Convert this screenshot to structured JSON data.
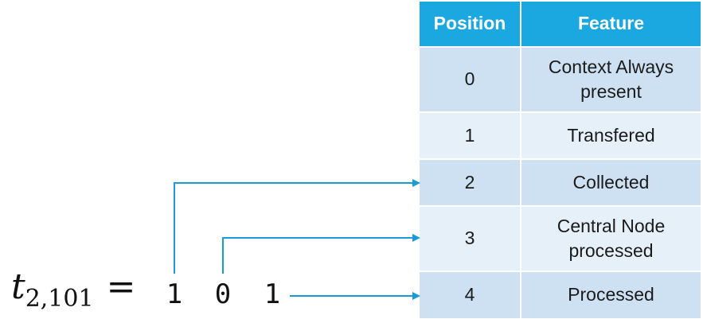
{
  "table": {
    "headers": {
      "position": "Position",
      "feature": "Feature"
    },
    "rows": [
      {
        "position": "0",
        "feature": "Context Always present"
      },
      {
        "position": "1",
        "feature": "Transfered"
      },
      {
        "position": "2",
        "feature": "Collected"
      },
      {
        "position": "3",
        "feature": "Central Node processed"
      },
      {
        "position": "4",
        "feature": "Processed"
      }
    ]
  },
  "formula": {
    "symbol": "t",
    "subscript": "2,101",
    "equals": "="
  },
  "bits": [
    "1",
    "0",
    "1"
  ],
  "colors": {
    "header_bg": "#1ba8e0",
    "row_dark": "#cde1f3",
    "row_light": "#e6f0f9",
    "arrow": "#1a9ad6"
  }
}
